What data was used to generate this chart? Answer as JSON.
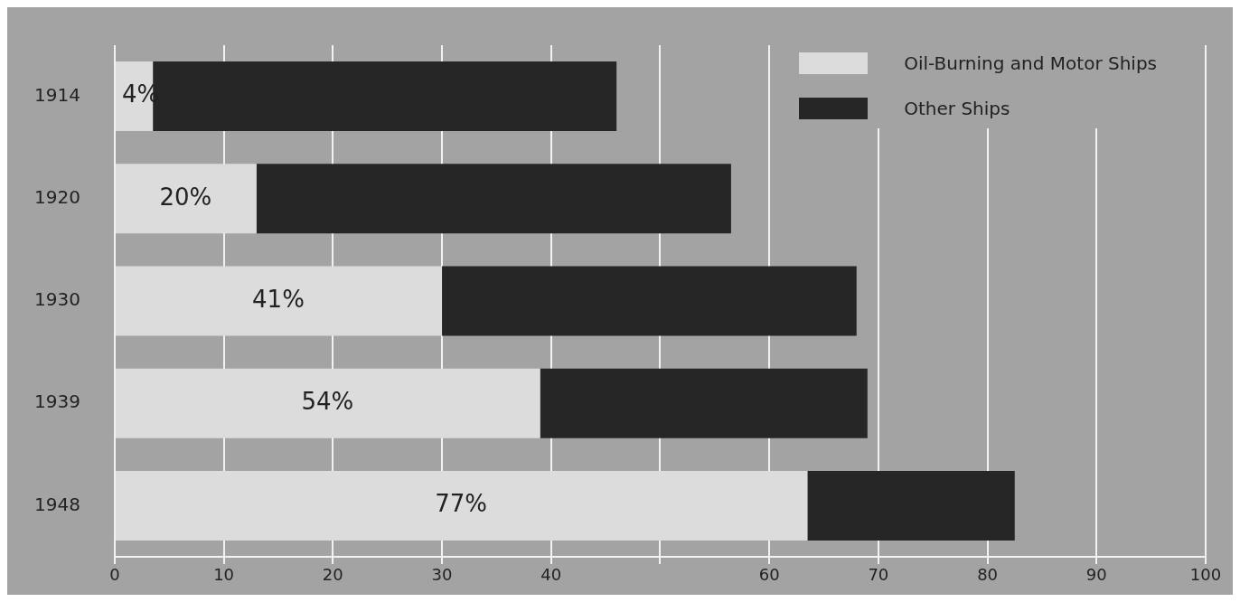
{
  "chart_data": {
    "type": "bar",
    "orientation": "horizontal",
    "stacked": true,
    "categories": [
      "1914",
      "1920",
      "1930",
      "1939",
      "1948"
    ],
    "series": [
      {
        "name": "Oil-Burning and Motor Ships",
        "color": "#dcdcdc",
        "values": [
          3.5,
          13,
          30,
          39,
          63.5
        ]
      },
      {
        "name": "Other Ships",
        "color": "#262626",
        "values": [
          42.5,
          43.5,
          38,
          30,
          19
        ]
      }
    ],
    "xlim": [
      0,
      100
    ],
    "xticks": [
      0,
      10,
      20,
      30,
      40,
      {
        "value": 50,
        "label": null
      },
      60,
      70,
      80,
      90,
      100
    ],
    "annotations": [
      "4%",
      "20%",
      "41%",
      "54%",
      "77%"
    ],
    "grid": "x",
    "legend": "top right"
  }
}
